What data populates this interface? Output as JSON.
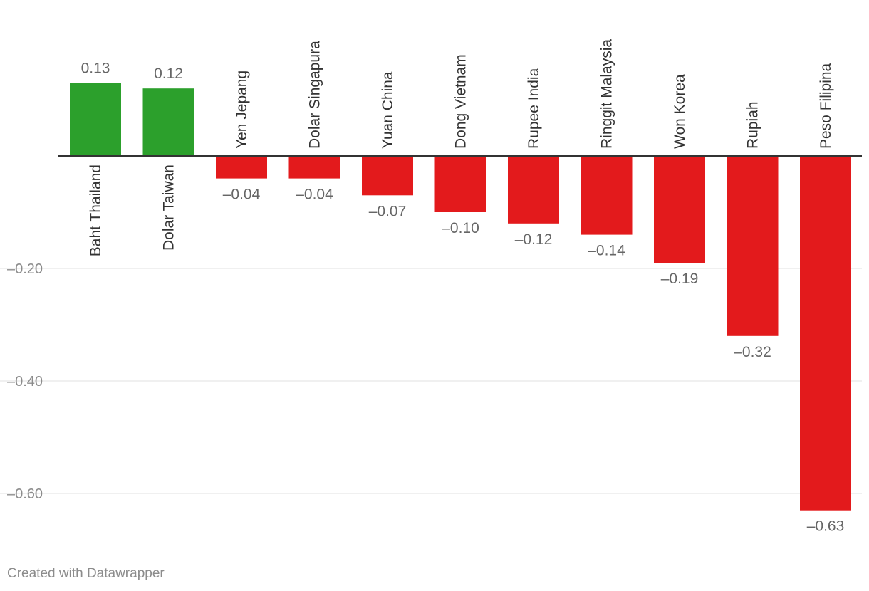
{
  "chart_data": {
    "type": "bar",
    "categories": [
      "Baht Thailand",
      "Dolar Taiwan",
      "Yen Jepang",
      "Dolar Singapura",
      "Yuan China",
      "Dong Vietnam",
      "Rupee India",
      "Ringgit Malaysia",
      "Won Korea",
      "Rupiah",
      "Peso Filipina"
    ],
    "values": [
      0.13,
      0.12,
      -0.04,
      -0.04,
      -0.07,
      -0.1,
      -0.12,
      -0.14,
      -0.19,
      -0.32,
      -0.63
    ],
    "value_labels": [
      "0.13",
      "0.12",
      "–0.04",
      "–0.04",
      "–0.07",
      "–0.10",
      "–0.12",
      "–0.14",
      "–0.19",
      "–0.32",
      "–0.63"
    ],
    "y_ticks": [
      -0.2,
      -0.4,
      -0.6
    ],
    "y_tick_labels": [
      "–0.20",
      "–0.40",
      "–0.60"
    ],
    "ylim": [
      -0.66,
      0.2
    ],
    "grid": true,
    "colors": {
      "positive": "#2ca02c",
      "negative": "#e31a1c",
      "grid": "#e2e2e2",
      "axis": "#333333",
      "tick_label": "#8c8c8c",
      "value_label": "#666666",
      "category_label": "#333333"
    }
  },
  "footer": {
    "credit": "Created with Datawrapper"
  }
}
